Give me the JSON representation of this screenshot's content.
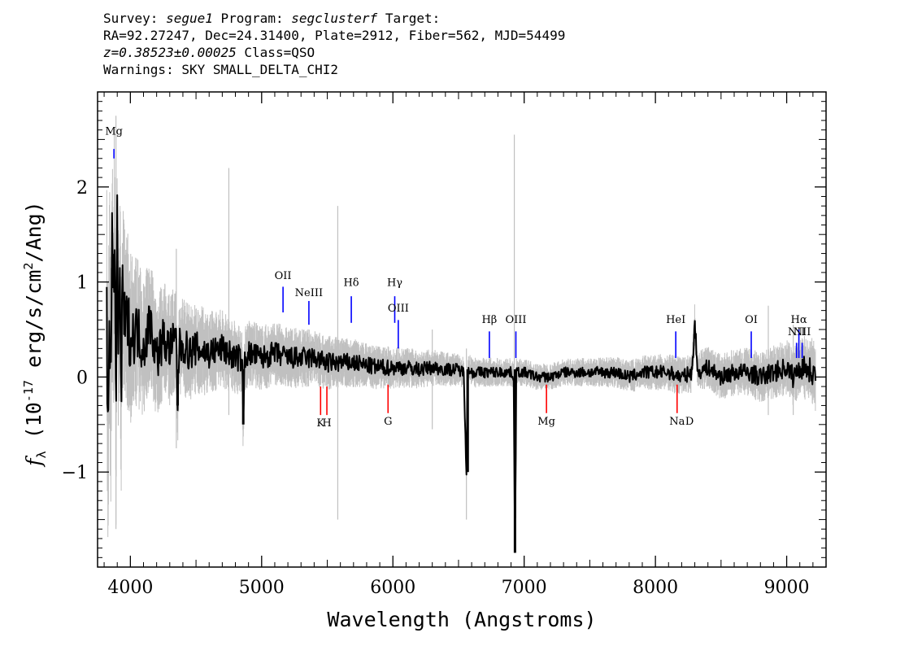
{
  "header": {
    "survey_label": "Survey:",
    "survey": "segue1",
    "program_label": "Program:",
    "program": "segclusterf",
    "target_label": "Target:",
    "line2": "RA=92.27247, Dec=24.31400, Plate=2912, Fiber=562, MJD=54499",
    "redshift": "z=0.38523±0.00025",
    "class_text": "Class=QSO",
    "warnings": "Warnings: SKY SMALL_DELTA_CHI2"
  },
  "colors": {
    "flux": "#000000",
    "error": "#c0c0c0",
    "emission": "#0000ff",
    "absorption": "#ff0000"
  },
  "chart_data": {
    "type": "line",
    "xlabel": "Wavelength (Angstroms)",
    "ylabel": "f_λ (10^-17 erg/s/cm^2/Ang)",
    "xlim": [
      3750,
      9300
    ],
    "ylim": [
      -2.0,
      3.0
    ],
    "xticks": [
      4000,
      5000,
      6000,
      7000,
      8000,
      9000
    ],
    "yticks": [
      -1,
      0,
      1,
      2
    ],
    "xtick_labels": [
      "4000",
      "5000",
      "6000",
      "7000",
      "8000",
      "9000"
    ],
    "ytick_labels": [
      "−1",
      "0",
      "1",
      "2"
    ],
    "grid": false,
    "series": [
      {
        "role": "flux",
        "x": [
          3820,
          3830,
          3840,
          3850,
          3860,
          3870,
          3880,
          3890,
          3900,
          3910,
          3920,
          3930,
          3940,
          3960,
          3980,
          4000,
          4050,
          4100,
          4150,
          4200,
          4250,
          4300,
          4350,
          4360,
          4370,
          4400,
          4450,
          4500,
          4600,
          4700,
          4800,
          4850,
          4860,
          4870,
          4900,
          5000,
          5100,
          5200,
          5300,
          5400,
          5500,
          5600,
          5700,
          5800,
          5900,
          6000,
          6100,
          6200,
          6300,
          6400,
          6500,
          6540,
          6560,
          6570,
          6580,
          6600,
          6700,
          6800,
          6900,
          6920,
          6930,
          6935,
          6940,
          6960,
          7000,
          7100,
          7200,
          7300,
          7400,
          7500,
          7600,
          7700,
          7800,
          7900,
          8000,
          8100,
          8200,
          8280,
          8300,
          8320,
          8400,
          8500,
          8600,
          8700,
          8800,
          8900,
          9000,
          9050,
          9100,
          9150,
          9200,
          9220
        ],
        "values": [
          0.5,
          -0.6,
          1.0,
          -0.2,
          1.3,
          0.6,
          1.7,
          -0.5,
          1.6,
          0.2,
          1.2,
          -0.3,
          0.9,
          0.5,
          0.6,
          0.4,
          0.5,
          0.3,
          0.6,
          0.2,
          0.4,
          0.3,
          0.4,
          -0.3,
          0.3,
          0.35,
          0.25,
          0.3,
          0.25,
          0.3,
          0.2,
          0.2,
          -0.5,
          0.2,
          0.25,
          0.2,
          0.25,
          0.2,
          0.2,
          0.2,
          0.15,
          0.15,
          0.15,
          0.12,
          0.1,
          0.1,
          0.1,
          0.08,
          0.1,
          0.08,
          0.08,
          0.05,
          -1.0,
          0.0,
          0.08,
          0.05,
          0.05,
          0.05,
          0.05,
          0.0,
          -1.85,
          -1.0,
          0.05,
          0.05,
          0.05,
          0.0,
          0.0,
          0.05,
          0.05,
          0.05,
          0.05,
          0.05,
          0.0,
          0.05,
          0.05,
          0.05,
          0.0,
          0.05,
          0.6,
          0.05,
          0.1,
          0.0,
          0.05,
          0.05,
          0.0,
          0.05,
          0.1,
          0.0,
          0.1,
          0.1,
          0.05,
          0.0
        ]
      },
      {
        "role": "error-band",
        "x": [
          3820,
          3850,
          3900,
          3950,
          4000,
          4100,
          4200,
          4300,
          4500,
          4700,
          4900,
          5200,
          5500,
          5800,
          6100,
          6400,
          6700,
          7000,
          7300,
          7600,
          7900,
          8200,
          8500,
          8800,
          9000,
          9100,
          9200,
          9220
        ],
        "values": [
          1.3,
          1.1,
          1.0,
          0.85,
          0.75,
          0.6,
          0.55,
          0.5,
          0.4,
          0.35,
          0.3,
          0.27,
          0.24,
          0.2,
          0.18,
          0.15,
          0.13,
          0.12,
          0.12,
          0.13,
          0.15,
          0.17,
          0.2,
          0.22,
          0.25,
          0.27,
          0.3,
          0.3
        ]
      }
    ],
    "spikes": [
      {
        "x": 3890,
        "top": 2.75,
        "bottom": -1.6
      },
      {
        "x": 4350,
        "top": 1.35,
        "bottom": -0.75
      },
      {
        "x": 4750,
        "top": 2.2,
        "bottom": -0.4
      },
      {
        "x": 5580,
        "top": 1.8,
        "bottom": -1.5
      },
      {
        "x": 6300,
        "top": 0.5,
        "bottom": -0.55
      },
      {
        "x": 6560,
        "top": 0.3,
        "bottom": -1.5
      },
      {
        "x": 6925,
        "top": 2.55,
        "bottom": -1.8
      },
      {
        "x": 8860,
        "top": 0.75,
        "bottom": -0.4
      },
      {
        "x": 9050,
        "top": 0.55,
        "bottom": -0.4
      }
    ],
    "emission_lines": [
      {
        "label": "Mg",
        "x": 3875,
        "label_y": 2.55,
        "top": 2.4,
        "bottom": 2.3
      },
      {
        "label": "OII",
        "x": 5163,
        "label_y": 1.03,
        "top": 0.95,
        "bottom": 0.68
      },
      {
        "label": "NeIII",
        "x": 5360,
        "label_y": 0.85,
        "top": 0.8,
        "bottom": 0.55
      },
      {
        "label": "Hδ",
        "x": 5683,
        "label_y": 0.96,
        "top": 0.85,
        "bottom": 0.57
      },
      {
        "label": "Hγ",
        "x": 6014,
        "label_y": 0.96,
        "top": 0.85,
        "bottom": 0.57
      },
      {
        "label": "OIII",
        "x": 6041,
        "label_y": 0.69,
        "top": 0.6,
        "bottom": 0.3
      },
      {
        "label": "Hβ",
        "x": 6735,
        "label_y": 0.57,
        "top": 0.48,
        "bottom": 0.2
      },
      {
        "label": "OIII",
        "x": 6937,
        "label_y": 0.57,
        "top": 0.48,
        "bottom": 0.2
      },
      {
        "label": "HeI",
        "x": 8155,
        "label_y": 0.57,
        "top": 0.48,
        "bottom": 0.2
      },
      {
        "label": "OI",
        "x": 8730,
        "label_y": 0.57,
        "top": 0.48,
        "bottom": 0.2
      },
      {
        "label": "NII",
        "x": 9075,
        "label_y": 0.44,
        "top": 0.36,
        "bottom": 0.2
      },
      {
        "label": "Hα",
        "x": 9093,
        "label_y": 0.57,
        "top": 0.5,
        "bottom": 0.2
      },
      {
        "label": "NII",
        "x": 9118,
        "label_y": 0.44,
        "top": 0.36,
        "bottom": 0.2
      }
    ],
    "emission_label_text": {
      "NII_left": "NII",
      "NII_right": "NI"
    },
    "absorption_lines": [
      {
        "label": "K",
        "x": 5449,
        "label_y": -0.52,
        "top": -0.1,
        "bottom": -0.4
      },
      {
        "label": "H",
        "x": 5497,
        "label_y": -0.52,
        "top": -0.1,
        "bottom": -0.4
      },
      {
        "label": "G",
        "x": 5963,
        "label_y": -0.5,
        "top": -0.08,
        "bottom": -0.38
      },
      {
        "label": "Mg",
        "x": 7170,
        "label_y": -0.5,
        "top": -0.08,
        "bottom": -0.38
      },
      {
        "label": "Na",
        "x": 8165,
        "label_y": -0.5,
        "top": -0.08,
        "bottom": -0.38
      }
    ],
    "extra_labels": [
      {
        "text": "D",
        "x": 8260,
        "y": -0.5,
        "kind": "absorption"
      }
    ]
  }
}
